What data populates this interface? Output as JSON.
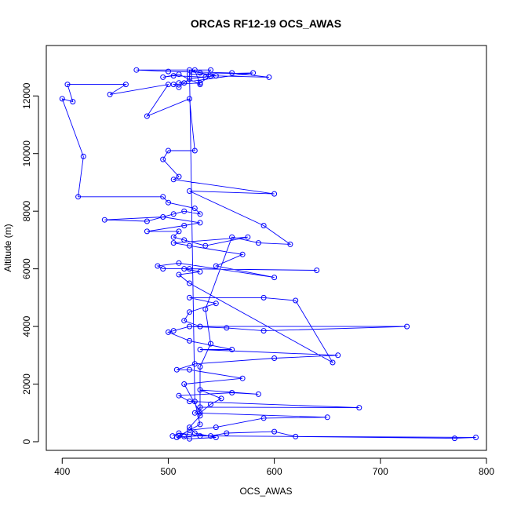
{
  "chart_data": {
    "type": "line",
    "title": "ORCAS RF12-19 OCS_AWAS",
    "xlabel": "OCS_AWAS",
    "ylabel": "Altitude (m)",
    "xlim": [
      385,
      800
    ],
    "ylim": [
      -300,
      13750
    ],
    "x_ticks": [
      400,
      500,
      600,
      700,
      800
    ],
    "y_ticks": [
      0,
      2000,
      4000,
      6000,
      8000,
      10000,
      12000
    ],
    "grid": false,
    "markers": "open-circle",
    "colors": {
      "series": "#0000ff",
      "frame": "#000000"
    },
    "series": [
      {
        "points": [
          [
            504,
            200
          ],
          [
            510,
            300
          ],
          [
            520,
            250
          ],
          [
            540,
            200
          ],
          [
            555,
            300
          ],
          [
            600,
            350
          ],
          [
            620,
            180
          ],
          [
            770,
            120
          ],
          [
            790,
            150
          ],
          [
            530,
            200
          ],
          [
            515,
            180
          ],
          [
            508,
            150
          ],
          [
            520,
            400
          ],
          [
            545,
            500
          ],
          [
            590,
            820
          ],
          [
            650,
            850
          ],
          [
            525,
            1000
          ],
          [
            530,
            1200
          ],
          [
            680,
            1180
          ],
          [
            520,
            1400
          ],
          [
            510,
            1600
          ],
          [
            560,
            1700
          ],
          [
            585,
            1650
          ],
          [
            530,
            1800
          ],
          [
            550,
            1500
          ],
          [
            540,
            1300
          ],
          [
            530,
            1000
          ],
          [
            515,
            2000
          ],
          [
            570,
            2200
          ],
          [
            520,
            2500
          ],
          [
            508,
            2500
          ],
          [
            525,
            2700
          ],
          [
            600,
            2900
          ],
          [
            660,
            3000
          ],
          [
            530,
            3200
          ],
          [
            560,
            3200
          ],
          [
            520,
            3500
          ],
          [
            500,
            3800
          ],
          [
            505,
            3850
          ],
          [
            520,
            4000
          ],
          [
            555,
            3950
          ],
          [
            590,
            3850
          ],
          [
            725,
            4000
          ],
          [
            530,
            4000
          ],
          [
            515,
            4200
          ],
          [
            520,
            4500
          ],
          [
            545,
            4800
          ],
          [
            520,
            5000
          ],
          [
            590,
            5000
          ],
          [
            620,
            4900
          ],
          [
            655,
            2750
          ],
          [
            520,
            5500
          ],
          [
            510,
            5800
          ],
          [
            530,
            5900
          ],
          [
            515,
            6000
          ],
          [
            640,
            5950
          ],
          [
            520,
            6000
          ],
          [
            495,
            6000
          ],
          [
            490,
            6100
          ],
          [
            510,
            6200
          ],
          [
            600,
            5700
          ],
          [
            545,
            6100
          ],
          [
            570,
            6500
          ],
          [
            520,
            6800
          ],
          [
            505,
            6900
          ],
          [
            575,
            7100
          ],
          [
            535,
            6800
          ],
          [
            515,
            7000
          ],
          [
            505,
            7100
          ],
          [
            510,
            7300
          ],
          [
            480,
            7300
          ],
          [
            515,
            7500
          ],
          [
            530,
            7600
          ],
          [
            495,
            7800
          ],
          [
            440,
            7700
          ],
          [
            480,
            7650
          ],
          [
            505,
            7900
          ],
          [
            515,
            8000
          ],
          [
            530,
            7900
          ],
          [
            525,
            8100
          ],
          [
            500,
            8300
          ],
          [
            495,
            8500
          ],
          [
            415,
            8500
          ],
          [
            420,
            9900
          ],
          [
            400,
            11900
          ],
          [
            410,
            11800
          ],
          [
            405,
            12400
          ],
          [
            460,
            12400
          ],
          [
            445,
            12050
          ],
          [
            500,
            12400
          ],
          [
            480,
            11300
          ],
          [
            520,
            11900
          ],
          [
            525,
            10100
          ],
          [
            500,
            10100
          ],
          [
            495,
            9800
          ],
          [
            510,
            9200
          ],
          [
            505,
            9100
          ],
          [
            600,
            8600
          ],
          [
            520,
            8700
          ],
          [
            590,
            7500
          ],
          [
            615,
            6850
          ],
          [
            585,
            6900
          ],
          [
            560,
            7100
          ],
          [
            535,
            4600
          ],
          [
            540,
            3400
          ],
          [
            530,
            2600
          ],
          [
            530,
            900
          ],
          [
            520,
            500
          ],
          [
            525,
            300
          ],
          [
            545,
            150
          ],
          [
            520,
            100
          ],
          [
            510,
            200
          ],
          [
            530,
            600
          ],
          [
            525,
            1400
          ],
          [
            520,
            12900
          ],
          [
            530,
            12800
          ],
          [
            545,
            12700
          ],
          [
            520,
            12600
          ],
          [
            515,
            12450
          ],
          [
            510,
            12300
          ],
          [
            505,
            12400
          ],
          [
            530,
            12450
          ],
          [
            540,
            12700
          ],
          [
            595,
            12650
          ],
          [
            560,
            12800
          ],
          [
            500,
            12850
          ],
          [
            470,
            12900
          ],
          [
            540,
            12900
          ],
          [
            535,
            12650
          ],
          [
            505,
            12700
          ],
          [
            495,
            12650
          ],
          [
            510,
            12750
          ],
          [
            530,
            12400
          ],
          [
            525,
            12900
          ],
          [
            520,
            12750
          ],
          [
            580,
            12800
          ],
          [
            510,
            12450
          ]
        ]
      }
    ]
  }
}
